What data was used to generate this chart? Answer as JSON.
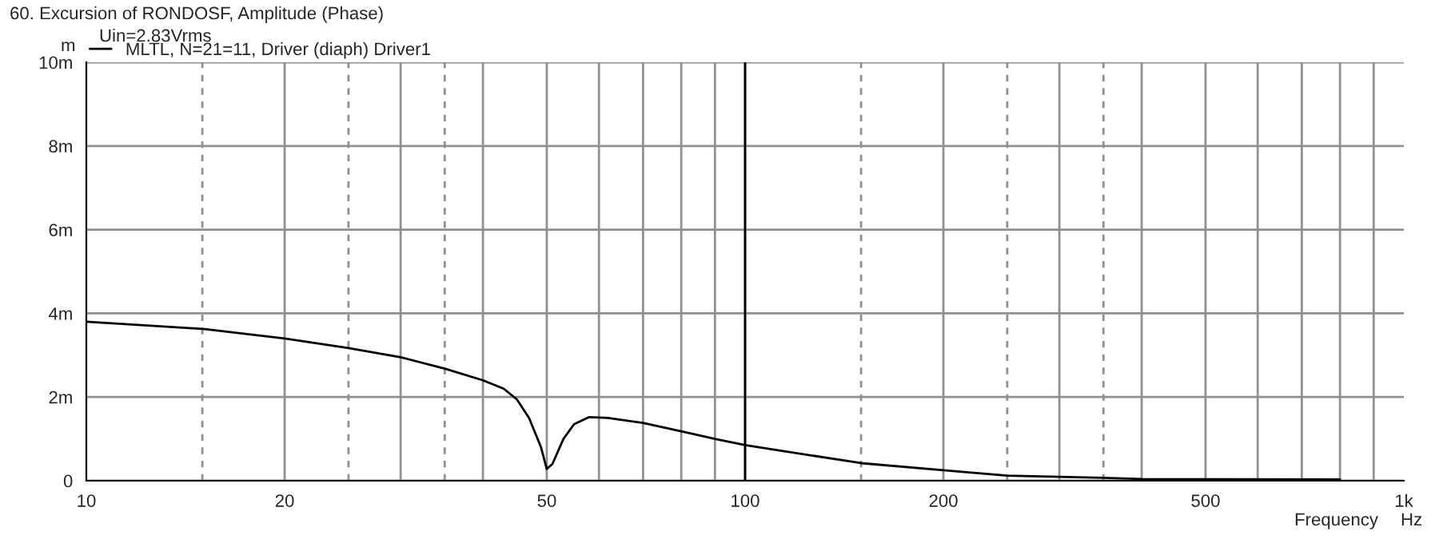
{
  "chart_data": {
    "type": "line",
    "title": "60. Excursion of RONDOSF, Amplitude (Phase)",
    "subtitle": "Uin=2.83Vrms",
    "xlabel": "Frequency",
    "ylabel": "m",
    "annotations": [
      "Hz"
    ],
    "ref_lines": [
      {
        "axis": "x",
        "value": 100,
        "color": "#000000"
      }
    ],
    "log": "x",
    "grid": true,
    "legend": "top left",
    "xlim": [
      10,
      1000
    ],
    "xticks": [
      10,
      20,
      50,
      100,
      200,
      500,
      {
        "value": 1000,
        "label": "1k"
      }
    ],
    "ylim": [
      0,
      10
    ],
    "yticks": [
      0,
      {
        "value": 2,
        "label": "2m"
      },
      {
        "value": 4,
        "label": "4m"
      },
      {
        "value": 6,
        "label": "6m"
      },
      {
        "value": 8,
        "label": "8m"
      },
      {
        "value": 10,
        "label": "10m"
      }
    ],
    "series": [
      {
        "name": "MLTL, N=21=11, Driver (diaph) Driver1",
        "color": "#000000",
        "x": [
          10,
          15,
          20,
          25,
          30,
          35,
          40,
          43,
          45,
          47,
          49,
          50,
          51,
          53,
          55,
          58,
          62,
          70,
          80,
          90,
          100,
          150,
          200,
          250,
          350,
          400,
          800
        ],
        "values": [
          3.8,
          3.63,
          3.4,
          3.17,
          2.95,
          2.68,
          2.4,
          2.2,
          1.95,
          1.5,
          0.8,
          0.28,
          0.4,
          1.0,
          1.35,
          1.52,
          1.5,
          1.38,
          1.18,
          1.0,
          0.85,
          0.42,
          0.25,
          0.12,
          0.07,
          0.04,
          0.03
        ]
      }
    ]
  }
}
